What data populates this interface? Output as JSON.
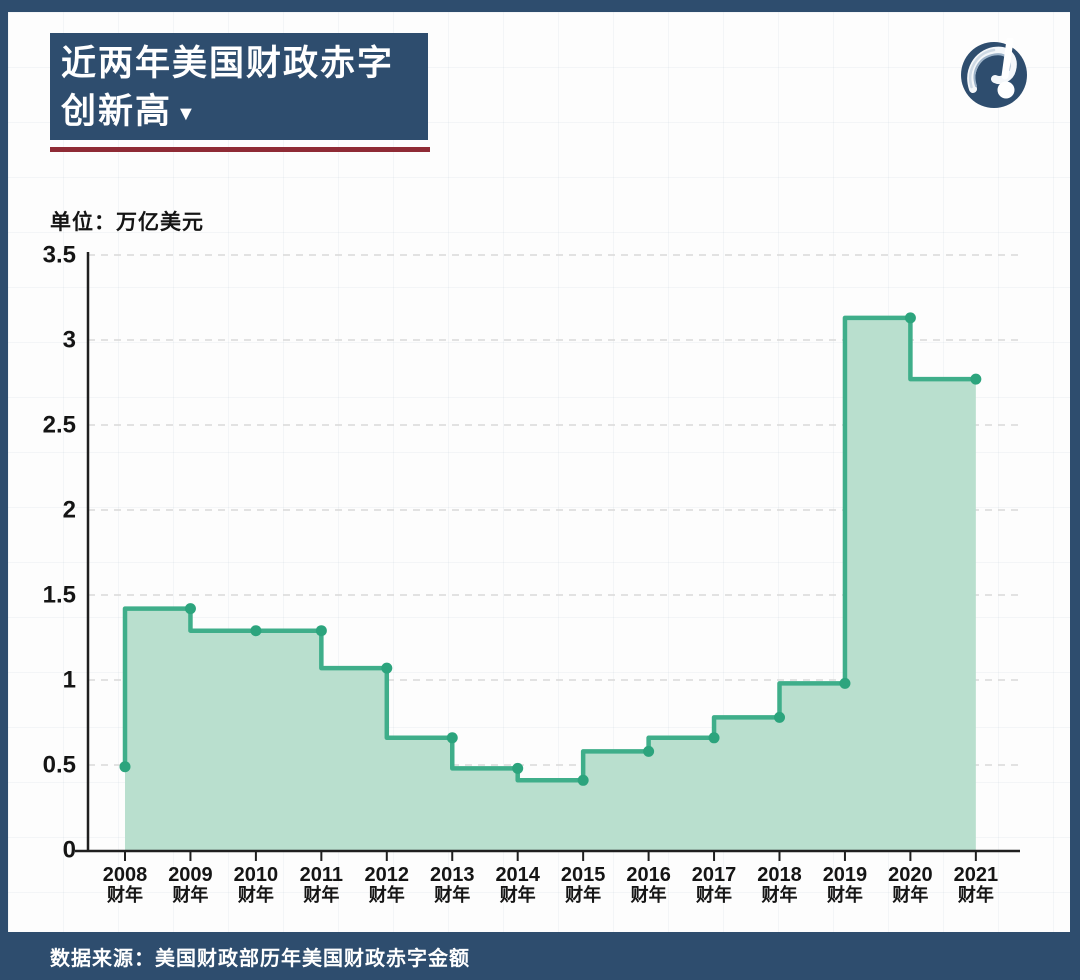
{
  "page": {
    "title_line1": "近两年美国财政赤字",
    "title_line2": "创新高",
    "title_arrow": "▼",
    "unit_label": "单位：万亿美元",
    "footer": "数据来源：美国财政部历年美国财政赤字金额"
  },
  "colors": {
    "navy": "#2e4d6e",
    "red_rule": "#8f2b35",
    "line_green": "#3fae8a",
    "dot_green": "#2ca47d",
    "fill_green": "#b9dfce",
    "axis": "#1f1f1f",
    "grid_dashed": "#d9d9d9",
    "label_text": "#151515"
  },
  "logo": {
    "name": "question-exclamation-mark-logo",
    "circle_color": "#2e4d6e",
    "mark_color": "#ffffff"
  },
  "chart_data": {
    "type": "area",
    "subtype": "step-start",
    "title": "近两年美国财政赤字创新高",
    "unit": "万亿美元",
    "years": [
      "2008",
      "2009",
      "2010",
      "2011",
      "2012",
      "2013",
      "2014",
      "2015",
      "2016",
      "2017",
      "2018",
      "2019",
      "2020",
      "2021"
    ],
    "x_tick_sub_label": "财年",
    "values": [
      0.49,
      1.42,
      1.29,
      1.29,
      1.07,
      0.66,
      0.48,
      0.41,
      0.58,
      0.66,
      0.78,
      0.98,
      3.13,
      2.77
    ],
    "yticks": [
      "0",
      "0.5",
      "1",
      "1.5",
      "2",
      "2.5",
      "3",
      "3.5"
    ],
    "ytick_values": [
      0,
      0.5,
      1,
      1.5,
      2,
      2.5,
      3,
      3.5
    ],
    "ylim": [
      0,
      3.5
    ],
    "grid": "horizontal-dashed",
    "legend": "none"
  }
}
